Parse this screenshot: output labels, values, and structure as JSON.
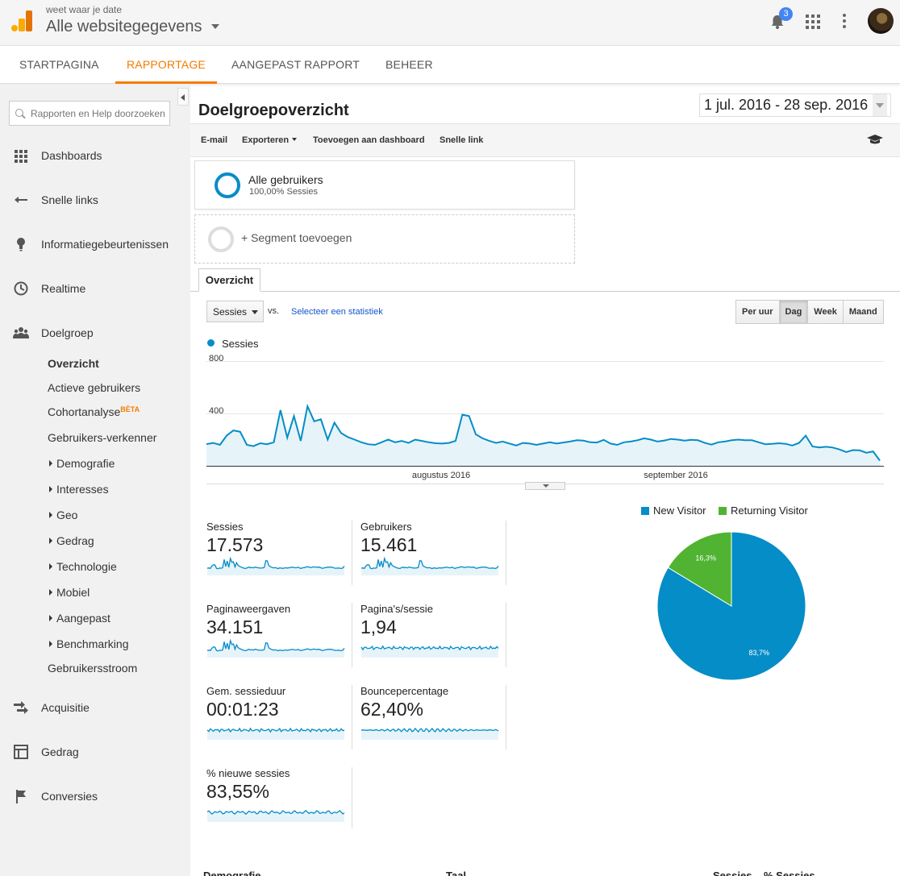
{
  "header": {
    "account_label": "weet waar je date",
    "property_name": "Alle websitegegevens",
    "notification_count": "3"
  },
  "nav_tabs": [
    {
      "label": "STARTPAGINA"
    },
    {
      "label": "RAPPORTAGE",
      "active": true
    },
    {
      "label": "AANGEPAST RAPPORT"
    },
    {
      "label": "BEHEER"
    }
  ],
  "sidebar": {
    "search_placeholder": "Rapporten en Help doorzoeken",
    "items": [
      {
        "label": "Dashboards",
        "icon": "grid-icon"
      },
      {
        "label": "Snelle links",
        "icon": "shortcut-icon"
      },
      {
        "label": "Informatiegebeurtenissen",
        "icon": "lightbulb-icon"
      },
      {
        "label": "Realtime",
        "icon": "clock-icon"
      },
      {
        "label": "Doelgroep",
        "icon": "people-icon"
      }
    ],
    "audience_sub": {
      "overzicht": "Overzicht",
      "actieve": "Actieve gebruikers",
      "cohort": "Cohortanalyse",
      "cohort_badge": "BÈTA",
      "verkenner": "Gebruikers-verkenner",
      "demografie": "Demografie",
      "interesses": "Interesses",
      "geo": "Geo",
      "gedrag": "Gedrag",
      "technologie": "Technologie",
      "mobiel": "Mobiel",
      "aangepast": "Aangepast",
      "benchmarking": "Benchmarking",
      "stroom": "Gebruikersstroom"
    },
    "bottom_items": [
      {
        "label": "Acquisitie",
        "icon": "acquisition-icon"
      },
      {
        "label": "Gedrag",
        "icon": "behavior-icon"
      },
      {
        "label": "Conversies",
        "icon": "flag-icon"
      }
    ]
  },
  "report": {
    "title": "Doelgroepoverzicht",
    "date_range": "1 jul. 2016 - 28 sep. 2016",
    "actions": {
      "email": "E-mail",
      "export": "Exporteren",
      "add_dashboard": "Toevoegen aan dashboard",
      "shortcut": "Snelle link"
    },
    "segment": {
      "name": "Alle gebruikers",
      "sub": "100,00% Sessies",
      "add": "+ Segment toevoegen"
    },
    "tab_overview": "Overzicht",
    "metric_select": "Sessies",
    "vs_label": "vs.",
    "select_metric_link": "Selecteer een statistiek",
    "periods": [
      "Per uur",
      "Dag",
      "Week",
      "Maand"
    ],
    "active_period": "Dag"
  },
  "colors": {
    "accent": "#f57c00",
    "series_blue": "#058dc7",
    "returning_green": "#50b432",
    "area_fill": "#e6f4fa"
  },
  "chart_data": {
    "type": "area",
    "series": [
      {
        "name": "Sessies",
        "values": [
          165,
          175,
          160,
          230,
          270,
          260,
          160,
          150,
          172,
          165,
          180,
          425,
          215,
          380,
          190,
          455,
          340,
          355,
          200,
          330,
          250,
          220,
          200,
          180,
          165,
          160,
          180,
          200,
          180,
          190,
          175,
          200,
          190,
          180,
          172,
          170,
          175,
          190,
          390,
          380,
          240,
          210,
          190,
          175,
          185,
          170,
          155,
          175,
          170,
          160,
          170,
          180,
          170,
          178,
          185,
          195,
          192,
          180,
          178,
          198,
          170,
          160,
          180,
          185,
          195,
          210,
          200,
          185,
          193,
          205,
          200,
          192,
          198,
          195,
          175,
          162,
          180,
          185,
          195,
          200,
          195,
          195,
          180,
          165,
          168,
          172,
          168,
          155,
          175,
          230,
          148,
          140,
          145,
          140,
          125,
          105,
          120,
          118,
          100,
          110,
          40
        ]
      }
    ],
    "x_ticks": [
      "augustus 2016",
      "september 2016"
    ],
    "y_ticks": [
      "800",
      "400"
    ],
    "ylim": [
      0,
      800
    ]
  },
  "scorecards": [
    {
      "label": "Sessies",
      "value": "17.573"
    },
    {
      "label": "Gebruikers",
      "value": "15.461"
    },
    {
      "label": "Paginaweergaven",
      "value": "34.151"
    },
    {
      "label": "Pagina's/sessie",
      "value": "1,94"
    },
    {
      "label": "Gem. sessieduur",
      "value": "00:01:23"
    },
    {
      "label": "Bouncepercentage",
      "value": "62,40%"
    },
    {
      "label": "% nieuwe sessies",
      "value": "83,55%"
    }
  ],
  "pie_chart": {
    "type": "pie",
    "slices": [
      {
        "name": "New Visitor",
        "value": 83.7,
        "label": "83,7%",
        "color": "#058dc7"
      },
      {
        "name": "Returning Visitor",
        "value": 16.3,
        "label": "16,3%",
        "color": "#50b432"
      }
    ]
  },
  "bottom_table": {
    "col_demografie": "Demografie",
    "col_taal": "Taal",
    "col_sessies": "Sessies",
    "col_pct": "% Sessies"
  }
}
